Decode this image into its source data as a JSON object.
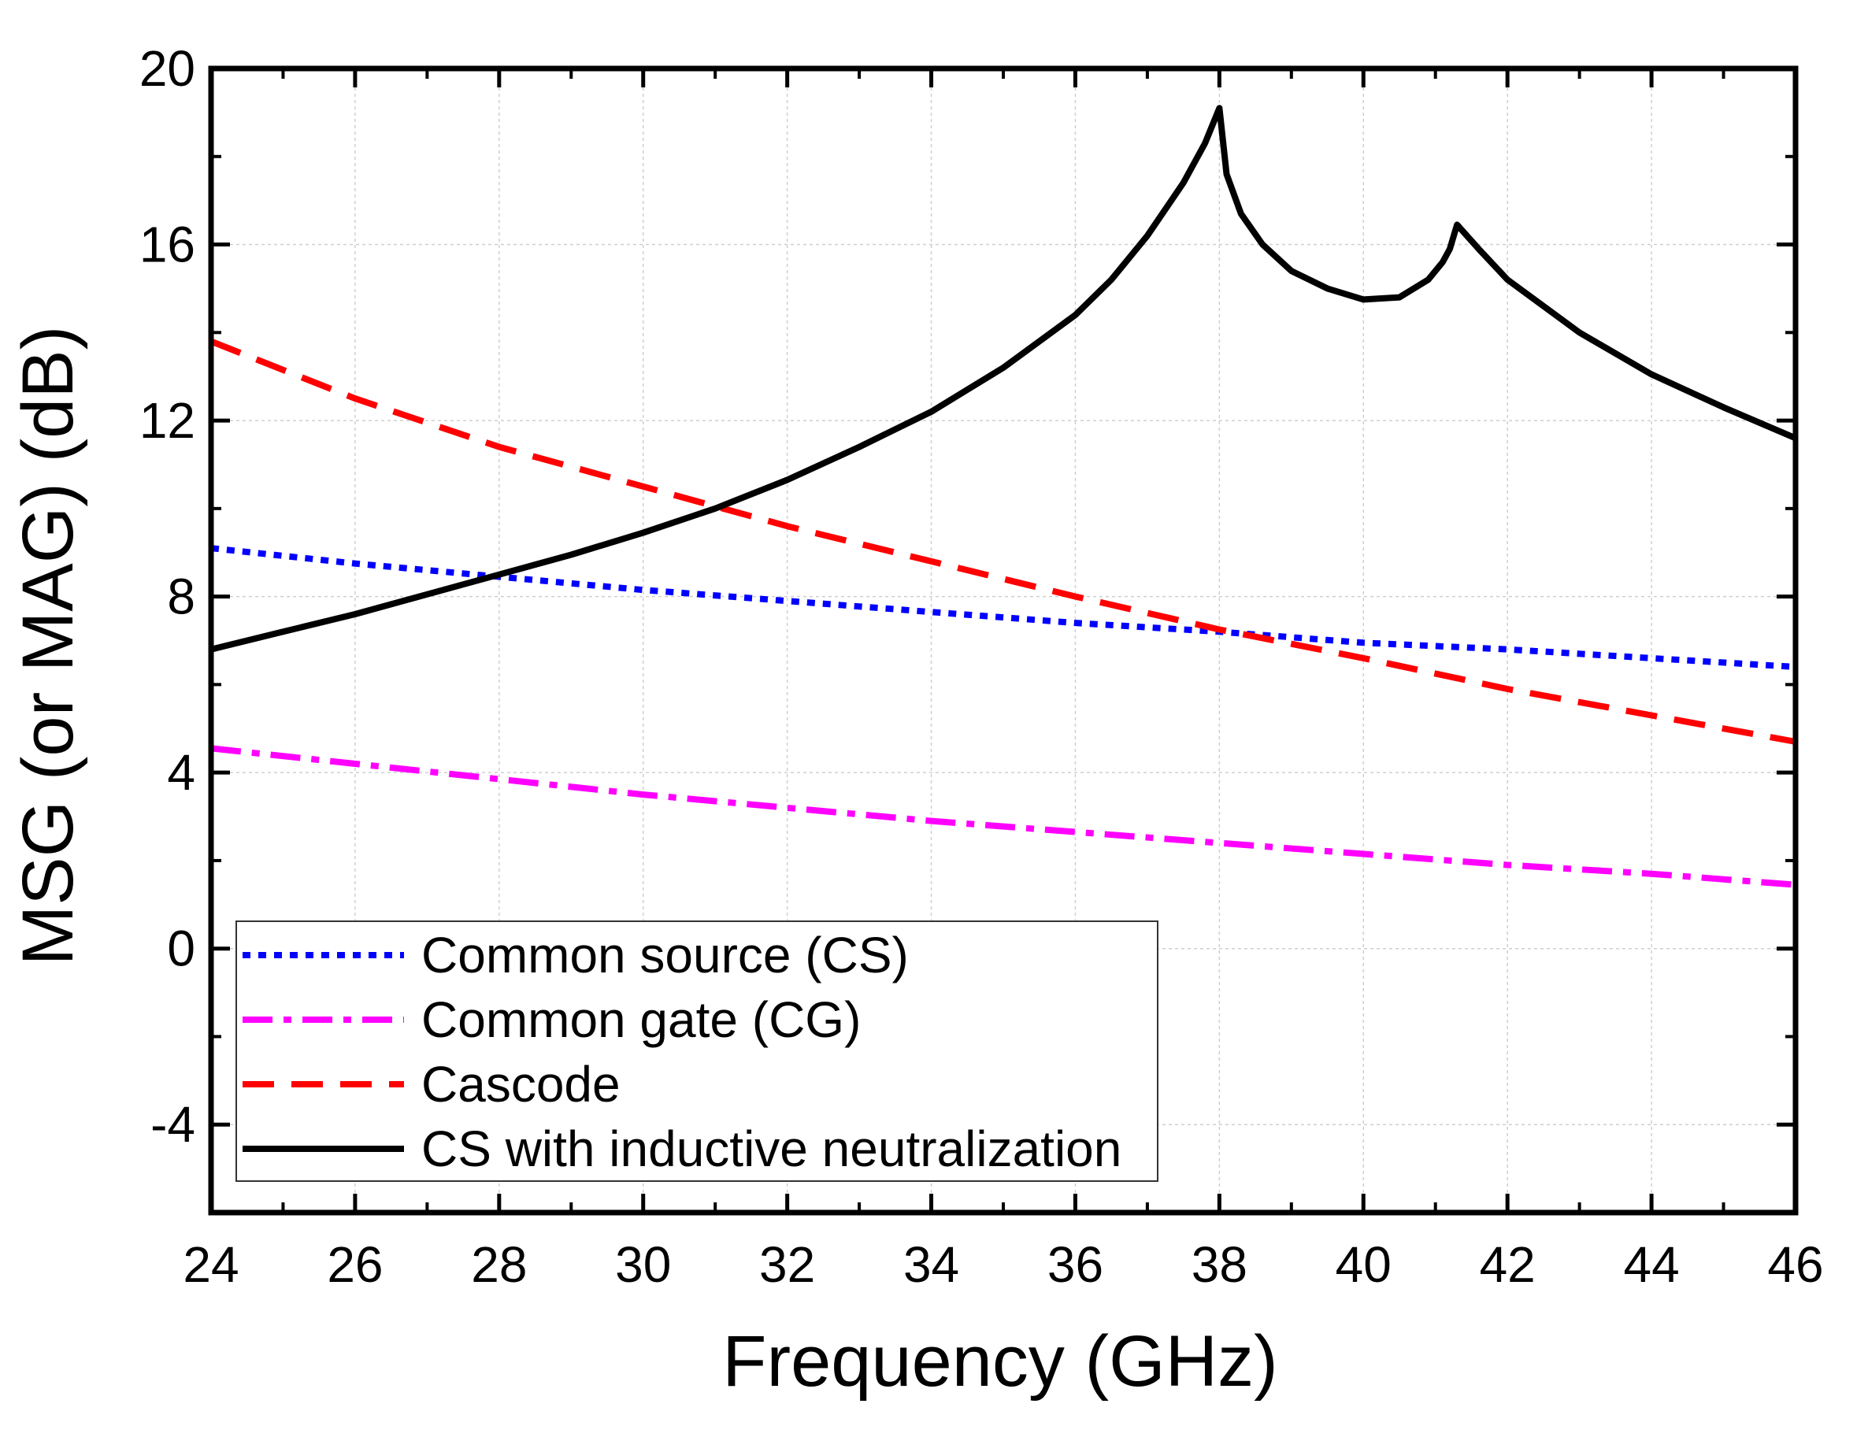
{
  "chart_data": {
    "type": "line",
    "title": "",
    "xlabel": "Frequency (GHz)",
    "ylabel": "MSG (or MAG) (dB)",
    "xlim": [
      24,
      46
    ],
    "ylim": [
      -6,
      20
    ],
    "xticks": [
      24,
      26,
      28,
      30,
      32,
      34,
      36,
      38,
      40,
      42,
      44,
      46
    ],
    "yticks": [
      -4,
      0,
      4,
      8,
      12,
      16,
      20
    ],
    "grid": true,
    "legend_position": "bottom-left",
    "series": [
      {
        "name": "Common source (CS)",
        "color": "#0000ff",
        "dash": "dot",
        "x": [
          24,
          26,
          28,
          30,
          32,
          34,
          36,
          38,
          40,
          42,
          44,
          46
        ],
        "y": [
          9.1,
          8.75,
          8.45,
          8.15,
          7.9,
          7.65,
          7.4,
          7.2,
          6.95,
          6.8,
          6.6,
          6.4
        ]
      },
      {
        "name": "Common gate (CG)",
        "color": "#ff00ff",
        "dash": "dashdot",
        "x": [
          24,
          26,
          28,
          30,
          32,
          34,
          36,
          38,
          40,
          42,
          44,
          46
        ],
        "y": [
          4.55,
          4.2,
          3.85,
          3.5,
          3.2,
          2.9,
          2.65,
          2.4,
          2.15,
          1.9,
          1.7,
          1.45
        ]
      },
      {
        "name": "Cascode",
        "color": "#ff0000",
        "dash": "dash",
        "x": [
          24,
          26,
          28,
          30,
          32,
          34,
          36,
          38,
          40,
          42,
          44,
          46
        ],
        "y": [
          13.8,
          12.5,
          11.4,
          10.5,
          9.6,
          8.8,
          8.0,
          7.25,
          6.6,
          5.9,
          5.3,
          4.7
        ]
      },
      {
        "name": "CS with inductive neutralization",
        "color": "#000000",
        "dash": "solid",
        "x": [
          24,
          25,
          26,
          27,
          28,
          29,
          30,
          31,
          32,
          33,
          34,
          35,
          36,
          36.5,
          37,
          37.5,
          37.8,
          38,
          38.1,
          38.3,
          38.6,
          39,
          39.5,
          40,
          40.5,
          40.9,
          41.1,
          41.2,
          41.3,
          41.6,
          42,
          43,
          44,
          45,
          46
        ],
        "y": [
          6.8,
          7.2,
          7.6,
          8.05,
          8.5,
          8.95,
          9.45,
          10.0,
          10.65,
          11.4,
          12.2,
          13.2,
          14.4,
          15.2,
          16.2,
          17.4,
          18.3,
          19.1,
          17.6,
          16.7,
          16.0,
          15.4,
          15.0,
          14.75,
          14.8,
          15.2,
          15.6,
          15.9,
          16.45,
          15.9,
          15.2,
          14.0,
          13.05,
          12.3,
          11.6
        ]
      }
    ]
  }
}
